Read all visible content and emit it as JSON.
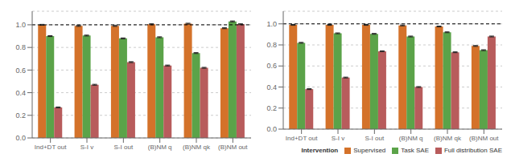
{
  "chart_data": [
    {
      "type": "bar",
      "categories": [
        "Ind+DT out",
        "S-I v",
        "S-I out",
        "(B)NM q",
        "(B)NM qk",
        "(B)NM out"
      ],
      "series": [
        {
          "name": "Supervised",
          "color": "#D4722A",
          "values": [
            1.0,
            0.99,
            0.99,
            1.005,
            1.01,
            0.97
          ],
          "errors": [
            0.004,
            0.004,
            0.004,
            0.004,
            0.004,
            0.004
          ]
        },
        {
          "name": "Task SAE",
          "color": "#5BA349",
          "values": [
            0.9,
            0.905,
            0.88,
            0.89,
            0.75,
            1.03
          ],
          "errors": [
            0.004,
            0.004,
            0.004,
            0.004,
            0.004,
            0.004
          ]
        },
        {
          "name": "Full distribution SAE",
          "color": "#B85C5C",
          "values": [
            0.27,
            0.47,
            0.67,
            0.64,
            0.62,
            1.005
          ],
          "errors": [
            0.004,
            0.004,
            0.004,
            0.004,
            0.004,
            0.004
          ]
        }
      ],
      "ylim": [
        0.0,
        1.12
      ],
      "yticks": [
        {
          "value": 0.0,
          "label": "0.0"
        },
        0.2,
        0.4,
        0.6,
        0.8,
        {
          "value": 1.0,
          "label": "1.0"
        }
      ],
      "grid": true,
      "reference_line": 1.0
    },
    {
      "type": "bar",
      "categories": [
        "Ind+DT out",
        "S-I v",
        "S-I out",
        "(B)NM q",
        "(B)NM qk",
        "(B)NM out"
      ],
      "series": [
        {
          "name": "Supervised",
          "color": "#D4722A",
          "values": [
            0.99,
            0.99,
            0.99,
            0.985,
            0.975,
            0.79
          ],
          "errors": [
            0.004,
            0.004,
            0.004,
            0.004,
            0.004,
            0.004
          ]
        },
        {
          "name": "Task SAE",
          "color": "#5BA349",
          "values": [
            0.82,
            0.91,
            0.905,
            0.88,
            0.92,
            0.75
          ],
          "errors": [
            0.004,
            0.004,
            0.004,
            0.004,
            0.004,
            0.004
          ]
        },
        {
          "name": "Full distribution SAE",
          "color": "#B85C5C",
          "values": [
            0.38,
            0.49,
            0.74,
            0.4,
            0.73,
            0.88
          ],
          "errors": [
            0.004,
            0.004,
            0.004,
            0.004,
            0.004,
            0.004
          ]
        }
      ],
      "ylim": [
        0.0,
        1.12
      ],
      "yticks": [
        {
          "value": 0.0,
          "label": "0.0"
        },
        0.2,
        0.4,
        0.6,
        0.8,
        {
          "value": 1.0,
          "label": "1.0"
        }
      ],
      "grid": true,
      "reference_line": 1.0,
      "legend": "lower right",
      "legend_title": "Intervention"
    }
  ]
}
